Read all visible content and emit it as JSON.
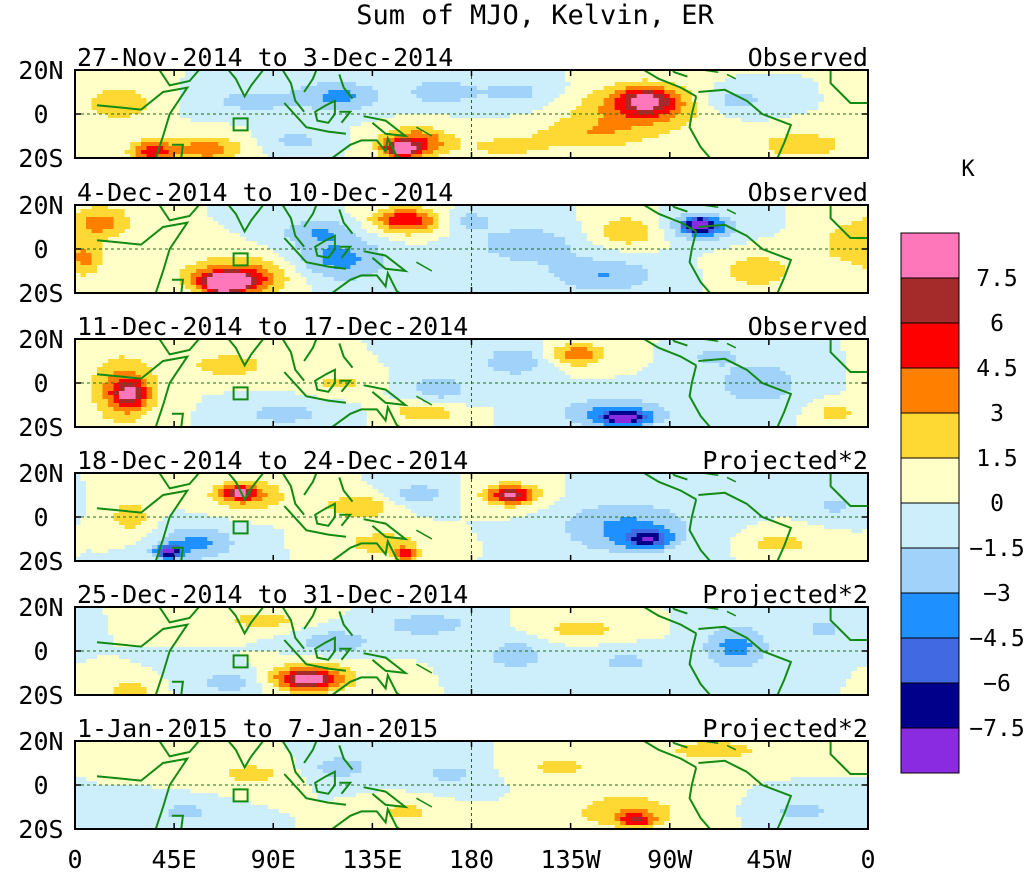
{
  "chart_data": {
    "type": "heatmap",
    "title": "Sum of MJO, Kelvin, ER",
    "units": "K",
    "y_ticks": [
      "20N",
      "0",
      "20S"
    ],
    "x_ticks": [
      "0",
      "45E",
      "90E",
      "135E",
      "180",
      "135W",
      "90W",
      "45W",
      "0"
    ],
    "x_range": [
      0,
      360
    ],
    "y_range": [
      -20,
      20
    ],
    "colorbar": {
      "levels": [
        "7.5",
        "6",
        "4.5",
        "3",
        "1.5",
        "0",
        "-1.5",
        "-3",
        "-4.5",
        "-6",
        "-7.5"
      ],
      "colors": [
        "#ff77bb",
        "#a52a2a",
        "#ff0000",
        "#ff7f00",
        "#ffd933",
        "#ffffc8",
        "#cdeffc",
        "#a0d2fa",
        "#1e90ff",
        "#4169e1",
        "#00008b",
        "#8a2be2"
      ]
    },
    "panels": [
      {
        "period": "27-Nov-2014 to 3-Dec-2014",
        "label": "Observed",
        "anomalies": [
          {
            "lon": 120,
            "lat": 8,
            "rlon": 20,
            "rlat": 7,
            "v": -3.4
          },
          {
            "lon": 165,
            "lat": 10,
            "rlon": 14,
            "rlat": 6,
            "v": -2.6
          },
          {
            "lon": 155,
            "lat": -13,
            "rlon": 16,
            "rlat": 7,
            "v": 4.8
          },
          {
            "lon": 148,
            "lat": -16,
            "rlon": 8,
            "rlat": 4,
            "v": 6.2
          },
          {
            "lon": 255,
            "lat": 2,
            "rlon": 30,
            "rlat": 12,
            "v": 3.6
          },
          {
            "lon": 260,
            "lat": 6,
            "rlon": 13,
            "rlat": 6,
            "v": 6.0
          },
          {
            "lon": 230,
            "lat": -10,
            "rlon": 25,
            "rlat": 7,
            "v": 2.2
          },
          {
            "lon": 200,
            "lat": 10,
            "rlon": 22,
            "rlat": 7,
            "v": -2.0
          },
          {
            "lon": 60,
            "lat": -16,
            "rlon": 16,
            "rlat": 6,
            "v": 4.0
          },
          {
            "lon": 35,
            "lat": -17,
            "rlon": 10,
            "rlat": 5,
            "v": 5.4
          },
          {
            "lon": 20,
            "lat": 5,
            "rlon": 15,
            "rlat": 8,
            "v": 3.0
          },
          {
            "lon": 80,
            "lat": 6,
            "rlon": 20,
            "rlat": 6,
            "v": -2.2
          },
          {
            "lon": 300,
            "lat": 6,
            "rlon": 15,
            "rlat": 6,
            "v": -2.4
          },
          {
            "lon": 330,
            "lat": -14,
            "rlon": 20,
            "rlat": 6,
            "v": 2.8
          },
          {
            "lon": 195,
            "lat": -15,
            "rlon": 18,
            "rlat": 5,
            "v": 2.0
          },
          {
            "lon": 100,
            "lat": -12,
            "rlon": 15,
            "rlat": 5,
            "v": -2.0
          }
        ]
      },
      {
        "period": "4-Dec-2014 to 10-Dec-2014",
        "label": "Observed",
        "anomalies": [
          {
            "lon": 75,
            "lat": -12,
            "rlon": 25,
            "rlat": 9,
            "v": 4.0
          },
          {
            "lon": 70,
            "lat": -15,
            "rlon": 14,
            "rlat": 5,
            "v": 6.5
          },
          {
            "lon": 68,
            "lat": -16,
            "rlon": 6,
            "rlat": 3,
            "v": 8.0
          },
          {
            "lon": 150,
            "lat": 13,
            "rlon": 15,
            "rlat": 6,
            "v": 5.8
          },
          {
            "lon": 12,
            "lat": 12,
            "rlon": 14,
            "rlat": 8,
            "v": 3.6
          },
          {
            "lon": 5,
            "lat": -5,
            "rlon": 8,
            "rlat": 8,
            "v": 3.0
          },
          {
            "lon": 120,
            "lat": -5,
            "rlon": 22,
            "rlat": 10,
            "v": -3.6
          },
          {
            "lon": 110,
            "lat": 8,
            "rlon": 18,
            "rlat": 6,
            "v": -2.6
          },
          {
            "lon": 205,
            "lat": 2,
            "rlon": 25,
            "rlat": 9,
            "v": -2.6
          },
          {
            "lon": 250,
            "lat": 8,
            "rlon": 15,
            "rlat": 7,
            "v": 3.0
          },
          {
            "lon": 285,
            "lat": 10,
            "rlon": 15,
            "rlat": 6,
            "v": -4.5
          },
          {
            "lon": 283,
            "lat": 11,
            "rlon": 6,
            "rlat": 3,
            "v": -6.5
          },
          {
            "lon": 240,
            "lat": -12,
            "rlon": 25,
            "rlat": 8,
            "v": -3.0
          },
          {
            "lon": 310,
            "lat": -10,
            "rlon": 15,
            "rlat": 8,
            "v": 2.8
          },
          {
            "lon": 350,
            "lat": 2,
            "rlon": 12,
            "rlat": 10,
            "v": 2.5
          },
          {
            "lon": 180,
            "lat": 13,
            "rlon": 10,
            "rlat": 5,
            "v": -2.0
          }
        ]
      },
      {
        "period": "11-Dec-2014 to 17-Dec-2014",
        "label": "Observed",
        "anomalies": [
          {
            "lon": 22,
            "lat": -3,
            "rlon": 15,
            "rlat": 15,
            "v": 4.0
          },
          {
            "lon": 25,
            "lat": -5,
            "rlon": 7,
            "rlat": 6,
            "v": 5.2
          },
          {
            "lon": 245,
            "lat": -14,
            "rlon": 24,
            "rlat": 7,
            "v": -4.0
          },
          {
            "lon": 250,
            "lat": -16,
            "rlon": 9,
            "rlat": 3,
            "v": -6.2
          },
          {
            "lon": 228,
            "lat": 13,
            "rlon": 13,
            "rlat": 5,
            "v": 4.2
          },
          {
            "lon": 200,
            "lat": 10,
            "rlon": 15,
            "rlat": 7,
            "v": -2.8
          },
          {
            "lon": 160,
            "lat": -13,
            "rlon": 15,
            "rlat": 5,
            "v": 3.2
          },
          {
            "lon": 165,
            "lat": -3,
            "rlon": 15,
            "rlat": 8,
            "v": -2.4
          },
          {
            "lon": 70,
            "lat": 8,
            "rlon": 20,
            "rlat": 6,
            "v": 2.4
          },
          {
            "lon": 310,
            "lat": 0,
            "rlon": 20,
            "rlat": 10,
            "v": -2.8
          },
          {
            "lon": 95,
            "lat": -14,
            "rlon": 20,
            "rlat": 6,
            "v": -2.2
          },
          {
            "lon": 290,
            "lat": 12,
            "rlon": 10,
            "rlat": 4,
            "v": -2.2
          },
          {
            "lon": 120,
            "lat": 0,
            "rlon": 15,
            "rlat": 5,
            "v": 2.0
          },
          {
            "lon": 345,
            "lat": -14,
            "rlon": 10,
            "rlat": 5,
            "v": 2.2
          }
        ]
      },
      {
        "period": "18-Dec-2014 to 24-Dec-2014",
        "label": "Projected*2",
        "anomalies": [
          {
            "lon": 78,
            "lat": 10,
            "rlon": 18,
            "rlat": 7,
            "v": 3.4
          },
          {
            "lon": 75,
            "lat": 11,
            "rlon": 7,
            "rlat": 3,
            "v": 5.0
          },
          {
            "lon": 198,
            "lat": 10,
            "rlon": 15,
            "rlat": 6,
            "v": 3.4
          },
          {
            "lon": 198,
            "lat": 10,
            "rlon": 8,
            "rlat": 3,
            "v": 5.0
          },
          {
            "lon": 55,
            "lat": -12,
            "rlon": 18,
            "rlat": 8,
            "v": -3.4
          },
          {
            "lon": 42,
            "lat": -16,
            "rlon": 6,
            "rlat": 3,
            "v": -6.5
          },
          {
            "lon": 250,
            "lat": -5,
            "rlon": 30,
            "rlat": 12,
            "v": -3.4
          },
          {
            "lon": 260,
            "lat": -10,
            "rlon": 10,
            "rlat": 4,
            "v": -5.2
          },
          {
            "lon": 130,
            "lat": 5,
            "rlon": 18,
            "rlat": 6,
            "v": 2.8
          },
          {
            "lon": 140,
            "lat": -12,
            "rlon": 20,
            "rlat": 6,
            "v": 2.4
          },
          {
            "lon": 150,
            "lat": -17,
            "rlon": 5,
            "rlat": 3,
            "v": 4.8
          },
          {
            "lon": 155,
            "lat": 10,
            "rlon": 15,
            "rlat": 6,
            "v": -2.4
          },
          {
            "lon": 25,
            "lat": 0,
            "rlon": 10,
            "rlat": 8,
            "v": 2.4
          },
          {
            "lon": 320,
            "lat": -12,
            "rlon": 15,
            "rlat": 5,
            "v": 2.4
          },
          {
            "lon": 345,
            "lat": 5,
            "rlon": 10,
            "rlat": 5,
            "v": -2.0
          }
        ]
      },
      {
        "period": "25-Dec-2014 to 31-Dec-2014",
        "label": "Projected*2",
        "anomalies": [
          {
            "lon": 108,
            "lat": -12,
            "rlon": 20,
            "rlat": 7,
            "v": 4.0
          },
          {
            "lon": 105,
            "lat": -13,
            "rlon": 12,
            "rlat": 4,
            "v": 5.5
          },
          {
            "lon": 118,
            "lat": 4,
            "rlon": 18,
            "rlat": 6,
            "v": -2.6
          },
          {
            "lon": 160,
            "lat": 12,
            "rlon": 18,
            "rlat": 5,
            "v": -3.0
          },
          {
            "lon": 300,
            "lat": 2,
            "rlon": 15,
            "rlat": 10,
            "v": -3.6
          },
          {
            "lon": 70,
            "lat": -14,
            "rlon": 15,
            "rlat": 6,
            "v": -2.4
          },
          {
            "lon": 200,
            "lat": -2,
            "rlon": 15,
            "rlat": 8,
            "v": -2.4
          },
          {
            "lon": 230,
            "lat": 10,
            "rlon": 20,
            "rlat": 5,
            "v": 2.2
          },
          {
            "lon": 85,
            "lat": 14,
            "rlon": 20,
            "rlat": 5,
            "v": 2.2
          },
          {
            "lon": 25,
            "lat": -18,
            "rlon": 10,
            "rlat": 4,
            "v": 2.8
          },
          {
            "lon": 250,
            "lat": -5,
            "rlon": 15,
            "rlat": 6,
            "v": -2.0
          },
          {
            "lon": 340,
            "lat": 10,
            "rlon": 10,
            "rlat": 5,
            "v": -2.0
          }
        ]
      },
      {
        "period": "1-Jan-2015 to 7-Jan-2015",
        "label": "Projected*2",
        "anomalies": [
          {
            "lon": 250,
            "lat": -12,
            "rlon": 25,
            "rlat": 8,
            "v": 2.8
          },
          {
            "lon": 255,
            "lat": -16,
            "rlon": 8,
            "rlat": 3,
            "v": 4.6
          },
          {
            "lon": 290,
            "lat": 16,
            "rlon": 25,
            "rlat": 5,
            "v": 2.4
          },
          {
            "lon": 120,
            "lat": 8,
            "rlon": 15,
            "rlat": 6,
            "v": -2.4
          },
          {
            "lon": 170,
            "lat": 5,
            "rlon": 15,
            "rlat": 6,
            "v": -2.0
          },
          {
            "lon": 80,
            "lat": 5,
            "rlon": 20,
            "rlat": 6,
            "v": 2.0
          },
          {
            "lon": 220,
            "lat": 8,
            "rlon": 20,
            "rlat": 5,
            "v": 2.0
          },
          {
            "lon": 50,
            "lat": -12,
            "rlon": 15,
            "rlat": 5,
            "v": -2.0
          },
          {
            "lon": 330,
            "lat": -12,
            "rlon": 15,
            "rlat": 5,
            "v": -2.2
          },
          {
            "lon": 150,
            "lat": -12,
            "rlon": 15,
            "rlat": 5,
            "v": 2.0
          }
        ]
      }
    ]
  }
}
